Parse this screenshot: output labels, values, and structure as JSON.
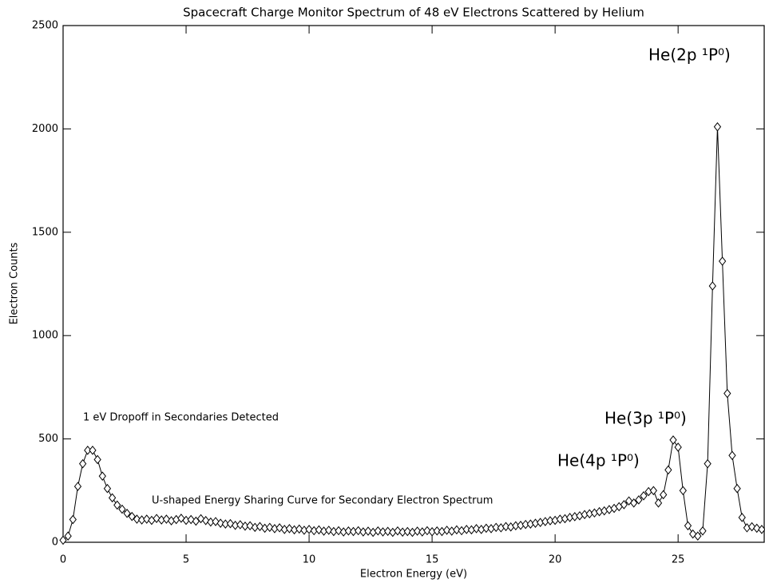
{
  "chart_data": {
    "type": "line",
    "title": "Spacecraft Charge Monitor Spectrum of 48 eV Electrons Scattered by Helium",
    "x_label": "Electron Energy (eV)",
    "y_label": "Electron Counts",
    "annotations": [
      "He(2p ¹P⁰)",
      "He(3p ¹P⁰)",
      "He(4p ¹P⁰)",
      "1 eV Dropoff in Secondaries Detected",
      "U-shaped Energy Sharing Curve for Secondary Electron Spectrum"
    ],
    "xlim": [
      0,
      28.5
    ],
    "ylim": [
      0,
      2500
    ],
    "xticks": [
      0,
      5,
      10,
      15,
      20,
      25
    ],
    "yticks": [
      0,
      500,
      1000,
      1500,
      2000,
      2500
    ],
    "color": "#000000",
    "x": [
      0,
      0.2,
      0.4,
      0.6,
      0.8,
      1.0,
      1.2,
      1.4,
      1.6,
      1.8,
      2.0,
      2.2,
      2.4,
      2.6,
      2.8,
      3.0,
      3.2,
      3.4,
      3.6,
      3.8,
      4.0,
      4.2,
      4.4,
      4.6,
      4.8,
      5.0,
      5.2,
      5.4,
      5.6,
      5.8,
      6.0,
      6.2,
      6.4,
      6.6,
      6.8,
      7.0,
      7.2,
      7.4,
      7.6,
      7.8,
      8.0,
      8.2,
      8.4,
      8.6,
      8.8,
      9.0,
      9.2,
      9.4,
      9.6,
      9.8,
      10.0,
      10.2,
      10.4,
      10.6,
      10.8,
      11.0,
      11.2,
      11.4,
      11.6,
      11.8,
      12.0,
      12.2,
      12.4,
      12.6,
      12.8,
      13.0,
      13.2,
      13.4,
      13.6,
      13.8,
      14.0,
      14.2,
      14.4,
      14.6,
      14.8,
      15.0,
      15.2,
      15.4,
      15.6,
      15.8,
      16.0,
      16.2,
      16.4,
      16.6,
      16.8,
      17.0,
      17.2,
      17.4,
      17.6,
      17.8,
      18.0,
      18.2,
      18.4,
      18.6,
      18.8,
      19.0,
      19.2,
      19.4,
      19.6,
      19.8,
      20.0,
      20.2,
      20.4,
      20.6,
      20.8,
      21.0,
      21.2,
      21.4,
      21.6,
      21.8,
      22.0,
      22.2,
      22.4,
      22.6,
      22.8,
      23.0,
      23.2,
      23.4,
      23.6,
      23.8,
      24.0,
      24.2,
      24.4,
      24.6,
      24.8,
      25.0,
      25.2,
      25.4,
      25.6,
      25.8,
      26.0,
      26.2,
      26.4,
      26.6,
      26.8,
      27.0,
      27.2,
      27.4,
      27.6,
      27.8,
      28.0,
      28.2,
      28.4
    ],
    "values": [
      10,
      30,
      110,
      270,
      380,
      445,
      445,
      400,
      320,
      260,
      215,
      180,
      160,
      140,
      125,
      112,
      108,
      112,
      106,
      115,
      108,
      112,
      104,
      110,
      116,
      106,
      110,
      102,
      114,
      105,
      98,
      100,
      92,
      88,
      90,
      82,
      85,
      78,
      80,
      72,
      76,
      68,
      72,
      66,
      70,
      62,
      66,
      60,
      64,
      58,
      62,
      56,
      60,
      54,
      58,
      52,
      56,
      50,
      55,
      52,
      56,
      50,
      54,
      48,
      55,
      50,
      53,
      48,
      55,
      49,
      52,
      48,
      54,
      50,
      56,
      51,
      55,
      52,
      58,
      54,
      60,
      56,
      62,
      60,
      66,
      62,
      68,
      66,
      72,
      70,
      76,
      74,
      80,
      82,
      86,
      88,
      92,
      96,
      100,
      104,
      106,
      112,
      114,
      120,
      124,
      128,
      134,
      138,
      142,
      148,
      152,
      158,
      164,
      172,
      182,
      200,
      190,
      205,
      225,
      245,
      250,
      190,
      230,
      350,
      495,
      460,
      250,
      80,
      40,
      30,
      55,
      380,
      1240,
      2010,
      1360,
      720,
      420,
      260,
      120,
      70,
      75,
      68,
      62
    ]
  }
}
